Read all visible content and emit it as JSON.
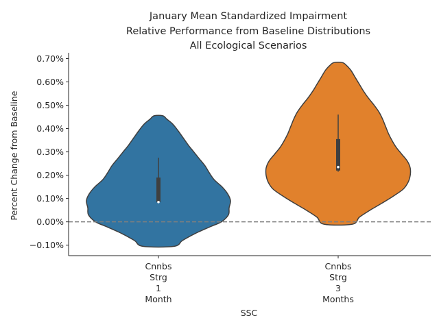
{
  "chart_data": {
    "type": "violin",
    "title": [
      "January Mean Standardized Impairment",
      "Relative Performance from Baseline Distributions",
      "All Ecological Scenarios"
    ],
    "xlabel": "SSC",
    "ylabel": "Percent Change from Baseline",
    "ylim": [
      -0.145,
      0.725
    ],
    "yticks": [
      -0.1,
      0.0,
      0.1,
      0.2,
      0.3,
      0.4,
      0.5,
      0.6,
      0.7
    ],
    "ytick_labels": [
      "−0.10%",
      "0.00%",
      "0.10%",
      "0.20%",
      "0.30%",
      "0.40%",
      "0.50%",
      "0.60%",
      "0.70%"
    ],
    "reference_line": {
      "y": 0.0,
      "style": "dashed",
      "color": "#7f7f7f"
    },
    "categories": [
      [
        "Cnnbs",
        "Strg",
        "1",
        "Month"
      ],
      [
        "Cnnbs",
        "Strg",
        "3",
        "Months"
      ]
    ],
    "violins": [
      {
        "color": "#3274a1",
        "min": -0.105,
        "max": 0.455,
        "median": 0.085,
        "q1": 0.085,
        "q3": 0.19,
        "whisker_low": 0.08,
        "whisker_high": 0.275,
        "density": [
          [
            -0.105,
            0.22
          ],
          [
            -0.08,
            0.34
          ],
          [
            -0.05,
            0.52
          ],
          [
            -0.02,
            0.74
          ],
          [
            0.0,
            0.89
          ],
          [
            0.03,
            0.99
          ],
          [
            0.06,
            1.0
          ],
          [
            0.09,
            1.02
          ],
          [
            0.12,
            0.98
          ],
          [
            0.15,
            0.9
          ],
          [
            0.18,
            0.79
          ],
          [
            0.21,
            0.72
          ],
          [
            0.24,
            0.66
          ],
          [
            0.27,
            0.58
          ],
          [
            0.3,
            0.5
          ],
          [
            0.33,
            0.42
          ],
          [
            0.36,
            0.35
          ],
          [
            0.39,
            0.28
          ],
          [
            0.42,
            0.2
          ],
          [
            0.44,
            0.12
          ],
          [
            0.455,
            0.06
          ]
        ]
      },
      {
        "color": "#e1812c",
        "min": -0.01,
        "max": 0.683,
        "median": 0.235,
        "q1": 0.22,
        "q3": 0.355,
        "whisker_low": 0.215,
        "whisker_high": 0.46,
        "density": [
          [
            -0.01,
            0.2
          ],
          [
            0.02,
            0.3
          ],
          [
            0.05,
            0.45
          ],
          [
            0.08,
            0.62
          ],
          [
            0.11,
            0.78
          ],
          [
            0.14,
            0.92
          ],
          [
            0.17,
            0.99
          ],
          [
            0.2,
            1.02
          ],
          [
            0.23,
            1.02
          ],
          [
            0.26,
            0.98
          ],
          [
            0.29,
            0.9
          ],
          [
            0.32,
            0.82
          ],
          [
            0.35,
            0.76
          ],
          [
            0.38,
            0.71
          ],
          [
            0.41,
            0.67
          ],
          [
            0.44,
            0.63
          ],
          [
            0.47,
            0.58
          ],
          [
            0.5,
            0.51
          ],
          [
            0.53,
            0.43
          ],
          [
            0.56,
            0.36
          ],
          [
            0.59,
            0.3
          ],
          [
            0.62,
            0.24
          ],
          [
            0.65,
            0.18
          ],
          [
            0.67,
            0.12
          ],
          [
            0.683,
            0.06
          ]
        ]
      }
    ],
    "grid": false,
    "legend": "none"
  }
}
